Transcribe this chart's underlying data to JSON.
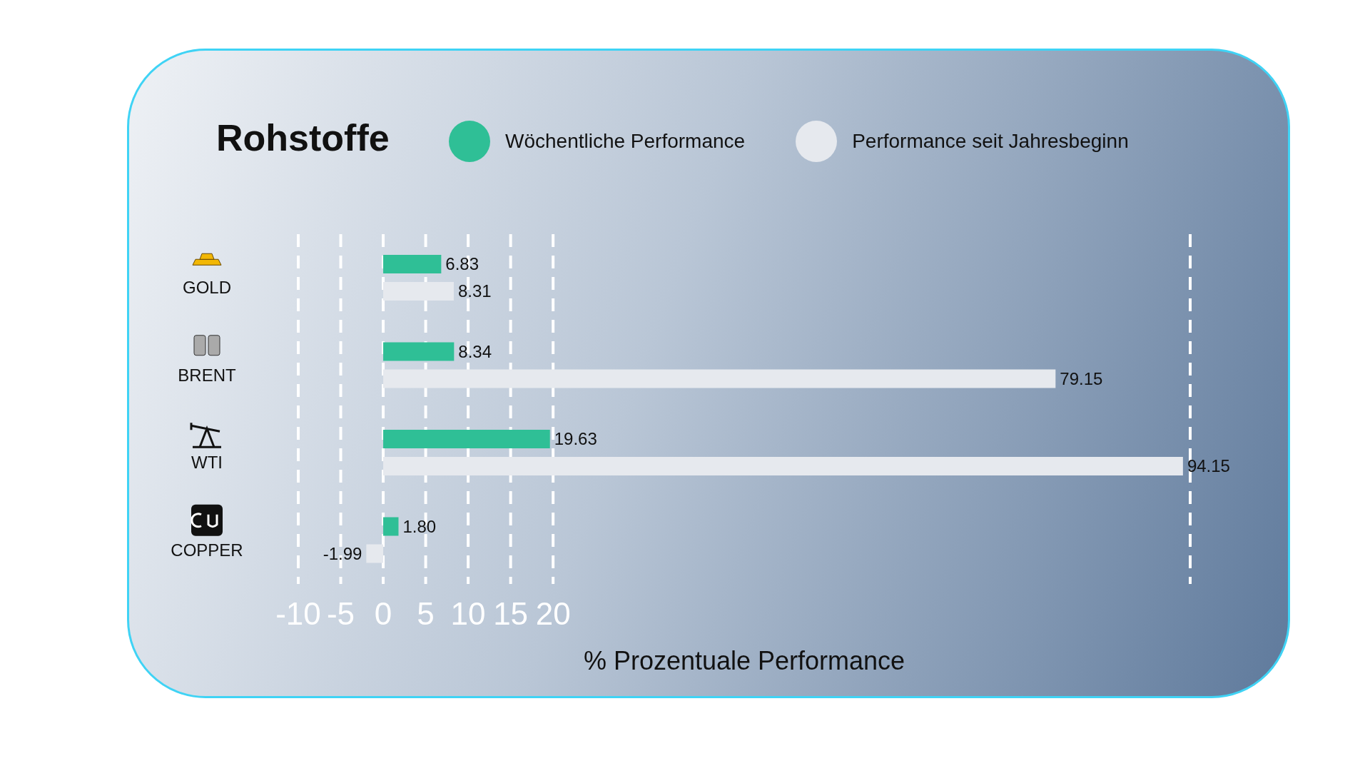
{
  "chart_data": {
    "type": "bar",
    "orientation": "horizontal",
    "title": "Rohstoffe",
    "xlabel": "% Prozentuale Performance",
    "categories": [
      "GOLD",
      "BRENT",
      "WTI",
      "COPPER"
    ],
    "series": [
      {
        "name": "Wöchentliche Performance",
        "color": "#2fbf96",
        "values": [
          6.83,
          8.34,
          19.63,
          1.8
        ],
        "value_labels": [
          "6.83",
          "8.34",
          "19.63",
          "1.80"
        ]
      },
      {
        "name": "Performance seit Jahresbeginn",
        "color": "#e6e9ee",
        "values": [
          8.31,
          79.15,
          94.15,
          -1.99
        ],
        "value_labels": [
          "8.31",
          "79.15",
          "94.15",
          "-1.99"
        ]
      }
    ],
    "xlim": [
      -10,
      95
    ],
    "xticks": [
      -10,
      -5,
      0,
      5,
      10,
      15,
      20
    ],
    "grid": "x",
    "legend": "top"
  }
}
